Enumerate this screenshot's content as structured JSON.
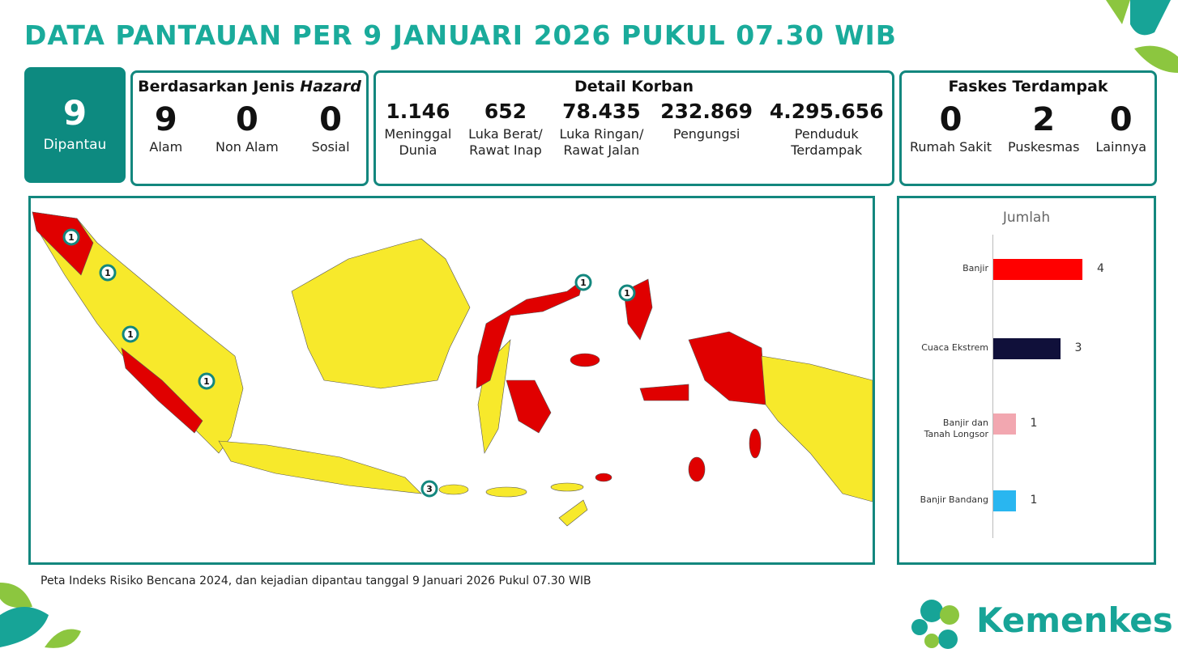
{
  "header": {
    "title": "DATA PANTAUAN PER 9 JANUARI 2026 PUKUL 07.30 WIB"
  },
  "monitored": {
    "count": "9",
    "label": "Dipantau"
  },
  "hazard": {
    "title_prefix": "Berdasarkan Jenis ",
    "title_emphasis": "Hazard",
    "items": [
      {
        "value": "9",
        "label": "Alam"
      },
      {
        "value": "0",
        "label": "Non Alam"
      },
      {
        "value": "0",
        "label": "Sosial"
      }
    ]
  },
  "casualties": {
    "title": "Detail Korban",
    "items": [
      {
        "value": "1.146",
        "label": "Meninggal\nDunia"
      },
      {
        "value": "652",
        "label": "Luka Berat/\nRawat Inap"
      },
      {
        "value": "78.435",
        "label": "Luka Ringan/\nRawat Jalan"
      },
      {
        "value": "232.869",
        "label": "Pengungsi"
      },
      {
        "value": "4.295.656",
        "label": "Penduduk\nTerdampak"
      }
    ]
  },
  "facilities": {
    "title": "Faskes Terdampak",
    "items": [
      {
        "value": "0",
        "label": "Rumah Sakit"
      },
      {
        "value": "2",
        "label": "Puskesmas"
      },
      {
        "value": "0",
        "label": "Lainnya"
      }
    ]
  },
  "map": {
    "markers": [
      {
        "count": 1
      },
      {
        "count": 1
      },
      {
        "count": 1
      },
      {
        "count": 1
      },
      {
        "count": 3
      },
      {
        "count": 1
      },
      {
        "count": 1
      }
    ]
  },
  "footnote": "Peta Indeks Risiko Bencana 2024, dan kejadian dipantau tanggal 9 Januari 2026 Pukul 07.30 WIB",
  "logo": {
    "text": "Kemenkes"
  },
  "chart_data": {
    "type": "bar",
    "orientation": "horizontal",
    "title": "Jumlah",
    "categories": [
      "Banjir",
      "Cuaca Ekstrem",
      "Banjir dan\nTanah Longsor",
      "Banjir Bandang"
    ],
    "values": [
      4,
      3,
      1,
      1
    ],
    "colors": [
      "#ff0000",
      "#10103a",
      "#f2a7b0",
      "#29b6f0"
    ]
  }
}
